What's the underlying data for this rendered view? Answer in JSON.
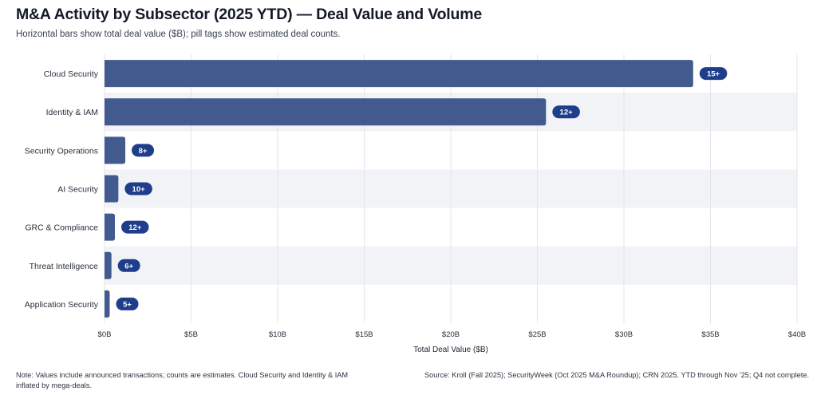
{
  "title": "M&A Activity by Subsector (2025 YTD) — Deal Value and Volume",
  "subtitle": "Horizontal bars show total deal value ($B); pill tags show estimated deal counts.",
  "note": "Note: Values include announced transactions; counts are estimates. Cloud Security and Identity & IAM inflated by mega-deals.",
  "source": "Source: Kroll (Fall 2025); SecurityWeek (Oct 2025 M&A Roundup); CRN 2025. YTD through Nov '25; Q4 not complete.",
  "colors": {
    "bar": "#435a8f",
    "pill": "#1e3d8a",
    "band": "#f2f3f6",
    "grid": "#e3e5ea"
  },
  "chart_data": {
    "type": "bar",
    "orientation": "horizontal",
    "categories": [
      "Cloud Security",
      "Identity & IAM",
      "Security Operations",
      "AI Security",
      "GRC & Compliance",
      "Threat Intelligence",
      "Application Security"
    ],
    "values": [
      34.0,
      25.5,
      1.2,
      0.8,
      0.6,
      0.4,
      0.3
    ],
    "deal_counts": [
      "15+",
      "12+",
      "8+",
      "10+",
      "12+",
      "6+",
      "5+"
    ],
    "xlabel": "Total Deal Value ($B)",
    "xlim": [
      0,
      40
    ],
    "xticks": [
      0,
      5,
      10,
      15,
      20,
      25,
      30,
      35,
      40
    ],
    "xtick_labels": [
      "$0B",
      "$5B",
      "$10B",
      "$15B",
      "$20B",
      "$25B",
      "$30B",
      "$35B",
      "$40B"
    ],
    "grid": true
  }
}
